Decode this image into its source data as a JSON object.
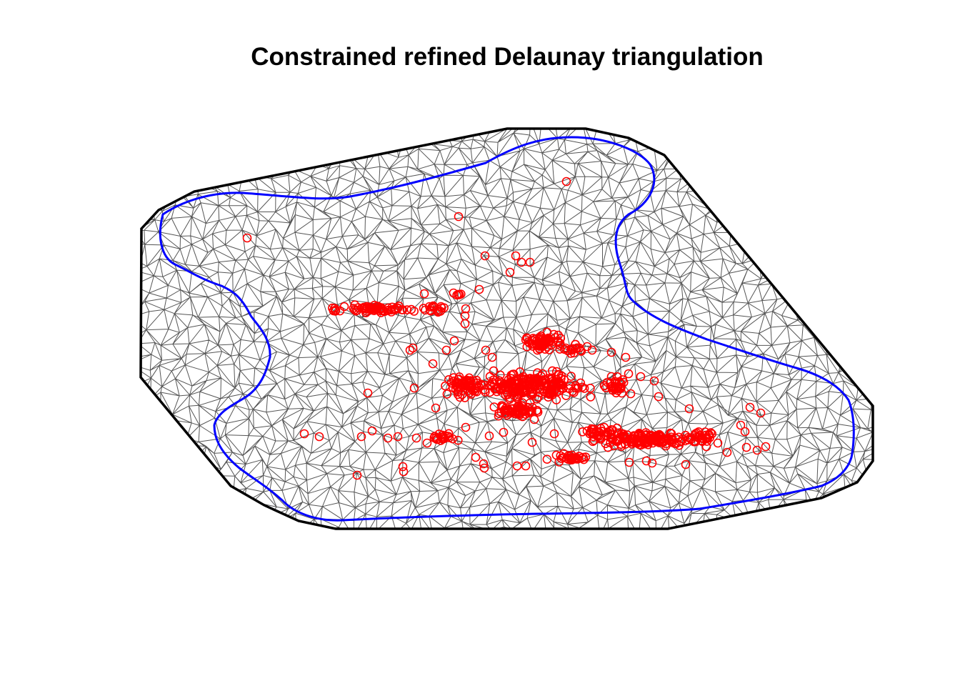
{
  "figure": {
    "title": "Constrained refined Delaunay triangulation"
  },
  "style": {
    "background": "#ffffff",
    "outer_boundary_color": "#000000",
    "inner_boundary_color": "#0000ff",
    "mesh_edge_color": "#555555",
    "observation_color": "#ff0000"
  },
  "legend": {
    "outer_boundary": "",
    "inner_boundary": "",
    "mesh_edges": "",
    "observations": ""
  }
}
